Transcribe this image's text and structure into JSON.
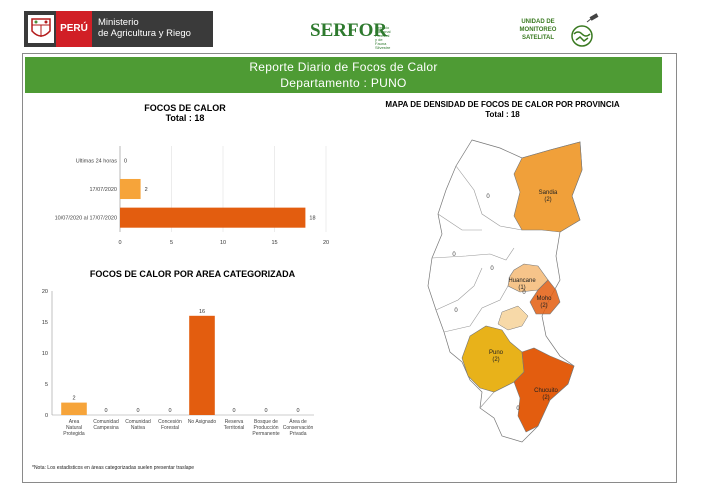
{
  "header": {
    "peru_label": "PERÚ",
    "ministry_line1": "Ministerio",
    "ministry_line2": "de Agricultura y Riego",
    "serfor_label": "SERFOR",
    "serfor_sub": "Servicio Nacional Forestal y de Fauna Silvestre",
    "monitoreo_line1": "UNIDAD DE",
    "monitoreo_line2": "MONITOREO",
    "monitoreo_line3": "SATELITAL"
  },
  "banner": {
    "title": "Reporte Diario de Focos de Calor",
    "subtitle": "Departamento : PUNO"
  },
  "chart_data": [
    {
      "type": "bar",
      "orientation": "horizontal",
      "title": "FOCOS DE CALOR",
      "subtitle": "Total : 18",
      "categories": [
        "Ultimas 24 horas",
        "17/07/2020",
        "10/07/2020 al 17/07/2020"
      ],
      "values": [
        0,
        2,
        18
      ],
      "value_labels": [
        "0",
        "2",
        "18"
      ],
      "colors": [
        "#f6a43a",
        "#f6a43a",
        "#e35d0f"
      ],
      "xlim": [
        0,
        20
      ],
      "xticks": [
        "0",
        "5",
        "10",
        "15",
        "20"
      ],
      "grid": true
    },
    {
      "type": "bar",
      "title": "FOCOS DE CALOR POR AREA CATEGORIZADA",
      "categories": [
        "Area Natural Protegida",
        "Comunidad Campesina",
        "Comunidad Nativa",
        "Concesión Forestal",
        "No Asignado",
        "Reserva Territorial",
        "Bosque de Producción Permanente",
        "Área de Conservación Privada"
      ],
      "values": [
        2,
        0,
        0,
        0,
        16,
        0,
        0,
        0
      ],
      "value_labels": [
        "2",
        "0",
        "0",
        "0",
        "16",
        "0",
        "0",
        "0"
      ],
      "colors": [
        "#f6a43a",
        "#e35d0f",
        "#e35d0f",
        "#e35d0f",
        "#e35d0f",
        "#e35d0f",
        "#e35d0f",
        "#e35d0f"
      ],
      "ylim": [
        0,
        20
      ],
      "yticks": [
        "0",
        "5",
        "10",
        "15",
        "20"
      ],
      "grid": false
    }
  ],
  "map": {
    "title": "MAPA DE DENSIDAD DE FOCOS DE CALOR POR PROVINCIA",
    "subtitle": "Total : 18",
    "labels": [
      {
        "name": "Sandia",
        "count": "(2)"
      },
      {
        "name": "Huancane",
        "count": "(1)"
      },
      {
        "name": "Moho",
        "count": "(2)"
      },
      {
        "name": "Puno",
        "count": "(2)"
      },
      {
        "name": "Chucuito",
        "count": "(2)"
      }
    ],
    "zero_labels": [
      "0",
      "0",
      "0",
      "0",
      "0",
      "0"
    ],
    "colors": {
      "high": "#e35d0f",
      "mid": "#f0a03a",
      "low": "#f6c48a",
      "yellow": "#e8b21a",
      "none": "#ffffff"
    }
  },
  "footnote": "*Nota: Los estadisticos en áreas categorizadas suelen presentar traslape"
}
